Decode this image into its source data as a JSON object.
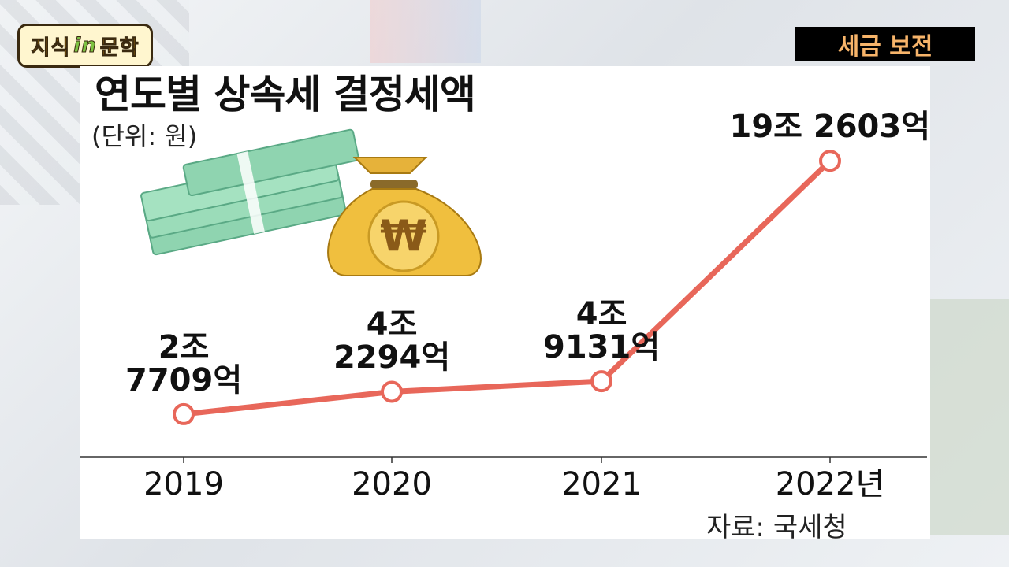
{
  "logo_text": {
    "a": "지식",
    "b": "in",
    "c": "문학"
  },
  "topic_label": "세금 보전",
  "chart_data": {
    "type": "line",
    "title": "연도별 상속세 결정세액",
    "unit_label": "(단위: 원)",
    "categories": [
      "2019",
      "2020",
      "2021",
      "2022년"
    ],
    "series": [
      {
        "values": [
          27709,
          42294,
          49131,
          192603
        ],
        "data_labels": [
          [
            "2조",
            "7709억"
          ],
          [
            "4조",
            "2294억"
          ],
          [
            "4조",
            "9131억"
          ],
          [
            "19조 2603억"
          ]
        ],
        "color": "#e8675a"
      }
    ],
    "ylim": [
      0,
      205000
    ],
    "grid": false,
    "source": "자료: 국세청"
  }
}
